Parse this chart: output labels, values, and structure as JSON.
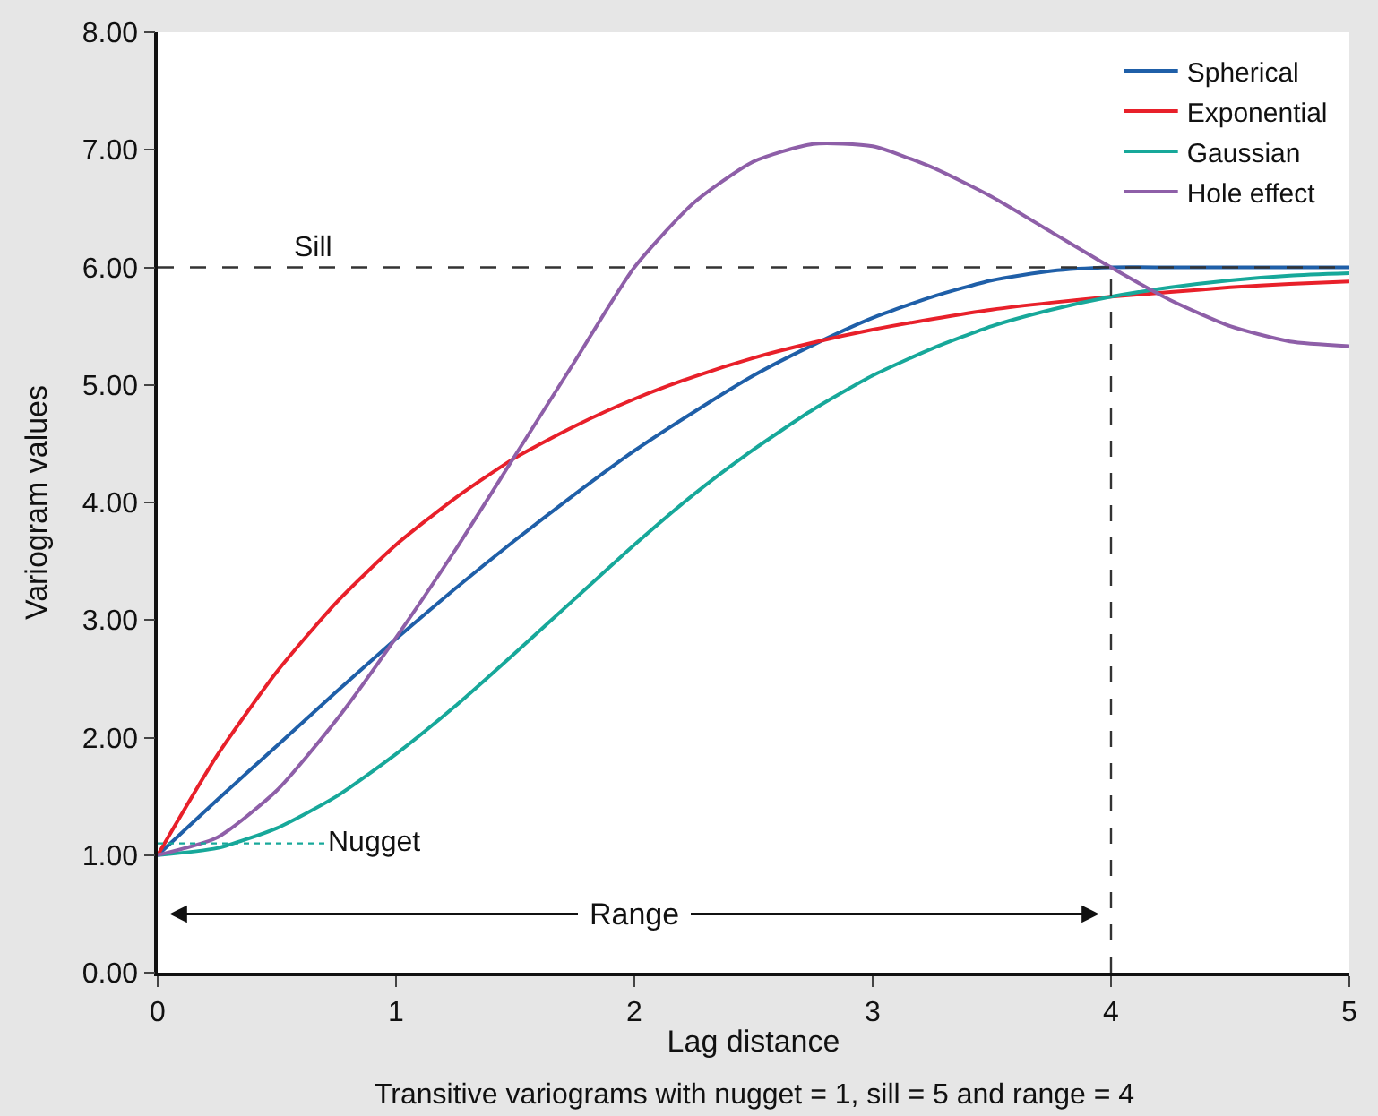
{
  "chart_data": {
    "type": "line",
    "xlabel": "Lag distance",
    "ylabel": "Variogram values",
    "xlim": [
      0,
      5
    ],
    "xticks": [
      0,
      1,
      2,
      3,
      4,
      5
    ],
    "ylim": [
      0,
      8
    ],
    "yticks": [
      {
        "value": 0,
        "label": "0.00"
      },
      {
        "value": 1,
        "label": "1.00"
      },
      {
        "value": 2,
        "label": "2.00"
      },
      {
        "value": 3,
        "label": "3.00"
      },
      {
        "value": 4,
        "label": "4.00"
      },
      {
        "value": 5,
        "label": "5.00"
      },
      {
        "value": 6,
        "label": "6.00"
      },
      {
        "value": 7,
        "label": "7.00"
      },
      {
        "value": 8,
        "label": "8.00"
      }
    ],
    "legend": "top right",
    "marker": "none",
    "line_style": "solid",
    "x": [
      0,
      0.25,
      0.5,
      0.75,
      1,
      1.25,
      1.5,
      1.75,
      2,
      2.25,
      2.5,
      2.75,
      3,
      3.25,
      3.5,
      3.75,
      4,
      4.25,
      4.5,
      4.75,
      5
    ],
    "series": [
      {
        "name": "Spherical",
        "color": "#1f5fa8",
        "values": [
          1,
          1.47,
          1.93,
          2.39,
          2.84,
          3.27,
          3.68,
          4.07,
          4.44,
          4.77,
          5.08,
          5.34,
          5.57,
          5.75,
          5.89,
          5.97,
          6,
          6,
          6,
          6,
          6
        ]
      },
      {
        "name": "Exponential",
        "color": "#e8202a",
        "values": [
          1,
          1.85,
          2.56,
          3.15,
          3.64,
          4.04,
          4.38,
          4.65,
          4.88,
          5.07,
          5.23,
          5.36,
          5.47,
          5.56,
          5.64,
          5.7,
          5.75,
          5.79,
          5.83,
          5.86,
          5.88
        ]
      },
      {
        "name": "Gaussian",
        "color": "#17a89a",
        "values": [
          1,
          1.06,
          1.23,
          1.5,
          1.86,
          2.27,
          2.72,
          3.18,
          3.64,
          4.07,
          4.45,
          4.79,
          5.08,
          5.31,
          5.5,
          5.64,
          5.75,
          5.83,
          5.89,
          5.93,
          5.95
        ]
      },
      {
        "name": "Hole effect",
        "color": "#8e5fa8",
        "values": [
          1,
          1.15,
          1.55,
          2.15,
          2.85,
          3.6,
          4.4,
          5.2,
          6.0,
          6.55,
          6.9,
          7.05,
          7.03,
          6.85,
          6.6,
          6.3,
          6.0,
          5.72,
          5.5,
          5.37,
          5.33
        ]
      }
    ],
    "ref_lines": [
      {
        "axis": "y",
        "value": 6,
        "label": "Sill",
        "color": "#333333",
        "line_style": "dashed"
      },
      {
        "axis": "x",
        "value": 4,
        "color": "#333333",
        "line_style": "dashed"
      },
      {
        "axis": "y",
        "value": 1.1,
        "label": "Nugget",
        "color": "#17a89a",
        "line_style": "dotted"
      }
    ],
    "annotations": [
      "Range",
      "Transitive variograms with nugget = 1, sill = 5 and range = 4"
    ]
  }
}
